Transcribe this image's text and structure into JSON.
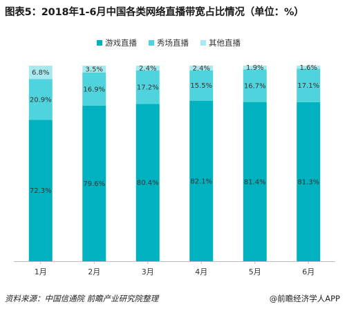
{
  "title": "图表5：2018年1-6月中国各类网络直播带宽占比情况（单位：%）",
  "source": "资料来源：中国信通院  前瞻产业研究院整理",
  "brand": "@前瞻经济学人APP",
  "chart_data": {
    "type": "bar",
    "stacked": true,
    "categories": [
      "1月",
      "2月",
      "3月",
      "4月",
      "5月",
      "6月"
    ],
    "series": [
      {
        "name": "游戏直播",
        "color": "#00b2bf",
        "values": [
          72.3,
          79.6,
          80.4,
          82.1,
          81.4,
          81.3
        ],
        "labels": [
          "72.3%",
          "79.6%",
          "80.4%",
          "82.1%",
          "81.4%",
          "81.3%"
        ]
      },
      {
        "name": "秀场直播",
        "color": "#4fd3dc",
        "values": [
          20.9,
          16.9,
          17.2,
          15.5,
          16.7,
          17.1
        ],
        "labels": [
          "20.9%",
          "16.9%",
          "17.2%",
          "15.5%",
          "16.7%",
          "17.1%"
        ]
      },
      {
        "name": "其他直播",
        "color": "#a6e9ee",
        "values": [
          6.8,
          3.5,
          2.4,
          2.4,
          1.9,
          1.6
        ],
        "labels": [
          "6.8%",
          "3.5%",
          "2.4%",
          "2.4%",
          "1.9%",
          "1.6%"
        ]
      }
    ],
    "ylim": [
      0,
      100
    ],
    "legend_position": "top",
    "grid": false
  }
}
